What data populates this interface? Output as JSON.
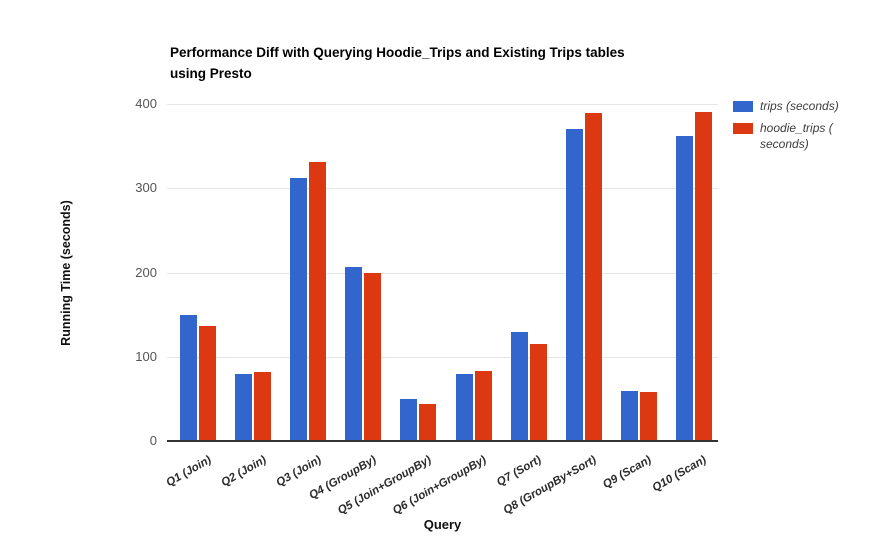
{
  "chart_data": {
    "type": "bar",
    "title": "Performance Diff with Querying Hoodie_Trips and Existing Trips tables using Presto",
    "title_lines": [
      "Performance Diff with Querying Hoodie_Trips and Existing Trips tables",
      "using Presto"
    ],
    "xlabel": "Query",
    "ylabel": "Running Time (seconds)",
    "ylim": [
      0,
      400
    ],
    "yticks": [
      0,
      100,
      200,
      300,
      400
    ],
    "grid": "horizontal",
    "legend_position": "right",
    "categories": [
      "Q1 (Join)",
      "Q2 (Join)",
      "Q3 (Join)",
      "Q4 (GroupBy)",
      "Q5 (Join+GroupBy)",
      "Q6 (Join+GroupBy)",
      "Q7 (Sort)",
      "Q8 (GroupBy+Sort)",
      "Q9 (Scan)",
      "Q10 (Scan)"
    ],
    "series": [
      {
        "id": "trips",
        "name": "trips (seconds)",
        "color": "#3366cc",
        "values": [
          149,
          80,
          312,
          206,
          50,
          80,
          129,
          370,
          59,
          362
        ]
      },
      {
        "id": "hoodie_trips",
        "name": "hoodie_trips ( seconds)",
        "color": "#dc3912",
        "values": [
          136,
          82,
          331,
          200,
          44,
          83,
          115,
          389,
          58,
          391
        ]
      }
    ]
  },
  "legend": {
    "items": [
      {
        "id": "trips",
        "color": "#3366cc",
        "lines": [
          "trips (seconds)"
        ]
      },
      {
        "id": "hoodie_trips",
        "color": "#dc3912",
        "lines": [
          "hoodie_trips (",
          "seconds)"
        ]
      }
    ]
  }
}
